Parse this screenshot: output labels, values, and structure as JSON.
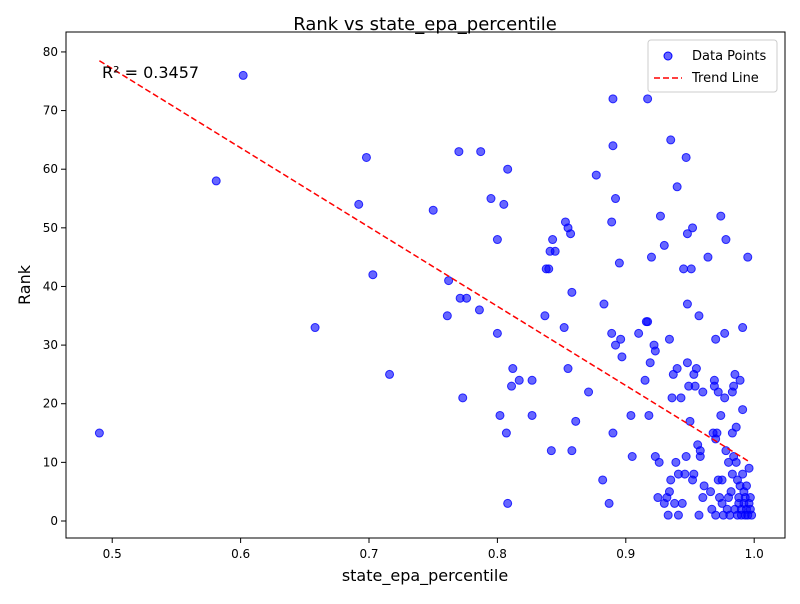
{
  "chart_data": {
    "type": "scatter",
    "title": "Rank vs state_epa_percentile",
    "x_label": "state_epa_percentile",
    "y_label": "Rank",
    "annotation": "R² = 0.3457",
    "xlim": [
      0.464,
      1.024
    ],
    "ylim": [
      -2.9,
      83.4
    ],
    "xticks": [
      0.5,
      0.6,
      0.7,
      0.8,
      0.9,
      {
        "value": 1,
        "label": "1.0"
      }
    ],
    "yticks": [
      0,
      10,
      20,
      30,
      40,
      50,
      60,
      70,
      80
    ],
    "legend": "upper right",
    "series": [
      {
        "name": "Data Points",
        "type": "scatter",
        "color": "#0000ff",
        "x": [
          0.49,
          0.581,
          0.602,
          0.658,
          0.692,
          0.698,
          0.703,
          0.716,
          0.75,
          0.761,
          0.762,
          0.77,
          0.771,
          0.773,
          0.776,
          0.786,
          0.787,
          0.795,
          0.8,
          0.8,
          0.802,
          0.805,
          0.807,
          0.808,
          0.808,
          0.811,
          0.812,
          0.817,
          0.827,
          0.827,
          0.837,
          0.838,
          0.84,
          0.841,
          0.843,
          0.842,
          0.845,
          0.852,
          0.853,
          0.855,
          0.855,
          0.857,
          0.858,
          0.858,
          0.861,
          0.871,
          0.877,
          0.882,
          0.883,
          0.887,
          0.889,
          0.889,
          0.89,
          0.89,
          0.89,
          0.892,
          0.892,
          0.895,
          0.896,
          0.897,
          0.904,
          0.905,
          0.91,
          0.915,
          0.916,
          0.917,
          0.917,
          0.918,
          0.919,
          0.92,
          0.922,
          0.923,
          0.923,
          0.925,
          0.926,
          0.927,
          0.93,
          0.93,
          0.932,
          0.933,
          0.934,
          0.934,
          0.935,
          0.935,
          0.936,
          0.937,
          0.938,
          0.939,
          0.94,
          0.94,
          0.941,
          0.941,
          0.943,
          0.944,
          0.945,
          0.946,
          0.947,
          0.947,
          0.948,
          0.948,
          0.948,
          0.949,
          0.95,
          0.951,
          0.952,
          0.952,
          0.953,
          0.953,
          0.954,
          0.955,
          0.956,
          0.957,
          0.957,
          0.958,
          0.958,
          0.96,
          0.96,
          0.961,
          0.964,
          0.966,
          0.967,
          0.968,
          0.969,
          0.969,
          0.97,
          0.97,
          0.97,
          0.971,
          0.972,
          0.972,
          0.973,
          0.974,
          0.974,
          0.975,
          0.975,
          0.976,
          0.977,
          0.977,
          0.978,
          0.978,
          0.979,
          0.98,
          0.98,
          0.981,
          0.982,
          0.983,
          0.983,
          0.983,
          0.984,
          0.984,
          0.985,
          0.985,
          0.986,
          0.986,
          0.987,
          0.987,
          0.988,
          0.988,
          0.989,
          0.989,
          0.99,
          0.99,
          0.991,
          0.991,
          0.991,
          0.992,
          0.992,
          0.993,
          0.993,
          0.994,
          0.994,
          0.995,
          0.995,
          0.996,
          0.996,
          0.997,
          0.997,
          0.998
        ],
        "values": [
          15,
          58,
          76,
          33,
          54,
          62,
          42,
          25,
          53,
          35,
          41,
          63,
          38,
          21,
          38,
          36,
          63,
          55,
          48,
          32,
          18,
          54,
          15,
          60,
          3,
          23,
          26,
          24,
          24,
          18,
          35,
          43,
          43,
          46,
          48,
          12,
          46,
          33,
          51,
          50,
          26,
          49,
          12,
          39,
          17,
          22,
          59,
          7,
          37,
          3,
          51,
          32,
          64,
          72,
          15,
          55,
          30,
          44,
          31,
          28,
          18,
          11,
          32,
          24,
          34,
          34,
          72,
          18,
          27,
          45,
          30,
          11,
          29,
          4,
          10,
          52,
          3,
          47,
          4,
          1,
          31,
          5,
          65,
          7,
          21,
          25,
          3,
          10,
          26,
          57,
          8,
          1,
          21,
          3,
          43,
          8,
          62,
          11,
          37,
          49,
          27,
          23,
          17,
          43,
          50,
          7,
          8,
          25,
          23,
          26,
          13,
          35,
          1,
          11,
          12,
          22,
          4,
          6,
          45,
          5,
          2,
          15,
          23,
          24,
          31,
          14,
          1,
          15,
          22,
          7,
          4,
          52,
          18,
          7,
          3,
          1,
          32,
          21,
          48,
          12,
          2,
          10,
          4,
          1,
          5,
          15,
          22,
          8,
          23,
          11,
          25,
          2,
          10,
          16,
          7,
          1,
          3,
          4,
          24,
          6,
          2,
          1,
          8,
          33,
          19,
          5,
          3,
          4,
          1,
          6,
          2,
          45,
          1,
          3,
          9,
          4,
          2,
          1
        ]
      },
      {
        "name": "Trend Line",
        "type": "line",
        "color": "#ff0000",
        "x": [
          0.49,
          0.997
        ],
        "values": [
          78.5,
          10
        ]
      }
    ]
  }
}
